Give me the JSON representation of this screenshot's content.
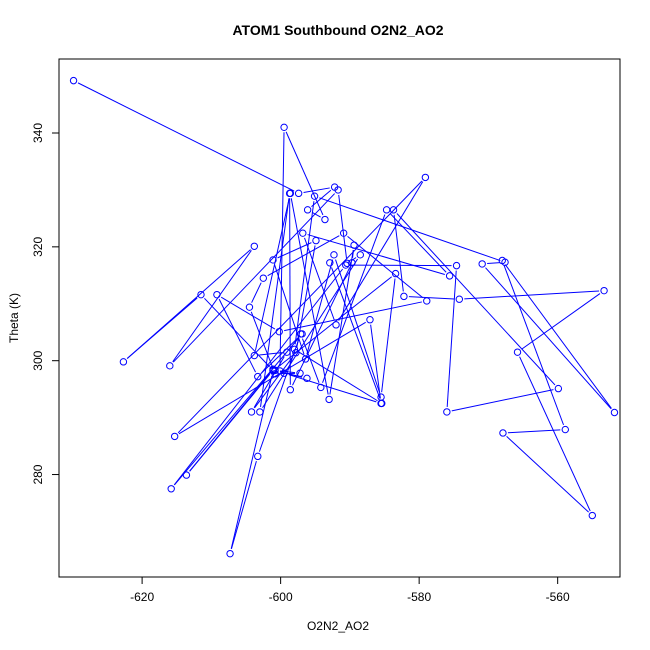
{
  "chart_data": {
    "type": "line",
    "title": "ATOM1 Southbound O2N2_AO2",
    "xlabel": "O2N2_AO2",
    "ylabel": "Theta (K)",
    "xlim": [
      -632,
      -551
    ],
    "ylim": [
      262,
      353
    ],
    "xticks": [
      -620,
      -600,
      -580,
      -560
    ],
    "yticks": [
      280,
      300,
      320,
      340
    ],
    "grid": false,
    "legend": "none",
    "series_color": "#0000ff",
    "markers": "open-circle",
    "x": [
      -629.9,
      -597.4,
      -592.2,
      -596.1,
      -593.6,
      -599.5,
      -600.1,
      -601.1,
      -613.6,
      -601.1,
      -611.5,
      -622.7,
      -603.8,
      -616.0,
      -591.7,
      -590.4,
      -588.5,
      -603.0,
      -598.7,
      -598.6,
      -589.7,
      -589.4,
      -593.0,
      -598.6,
      -603.8,
      -599.1,
      -604.2,
      -597.8,
      -594.9,
      -601.1,
      -596.4,
      -592.3,
      -585.5,
      -583.4,
      -601.1,
      -607.3,
      -603.3,
      -597.1,
      -594.2,
      -584.7,
      -575.6,
      -596.8,
      -592.0,
      -579.1,
      -615.3,
      -587.1,
      -585.5,
      -599.5,
      -596.2,
      -600.8,
      -597.2,
      -600.8,
      -604.5,
      -602.5,
      -590.9,
      -578.9,
      -600.2,
      -609.2,
      -603.3,
      -596.9,
      -615.8,
      -590.6,
      -574.6,
      -576.0,
      -559.9,
      -583.7,
      -582.2,
      -574.2,
      -553.3,
      -565.8,
      -555.0,
      -567.9,
      -558.9,
      -568.0,
      -551.8,
      -570.9,
      -567.6,
      -595.1,
      -598.0,
      -585.4,
      -592.9
    ],
    "y": [
      349.2,
      329.4,
      330.5,
      326.5,
      324.8,
      341.0,
      298.2,
      298.5,
      279.9,
      298.3,
      311.6,
      299.8,
      320.1,
      299.1,
      330.0,
      317.1,
      318.6,
      291.0,
      329.4,
      294.9,
      317.2,
      320.3,
      293.2,
      329.4,
      300.9,
      301.5,
      291.0,
      301.4,
      321.1,
      317.7,
      300.3,
      318.6,
      293.6,
      315.3,
      298.2,
      266.1,
      283.2,
      304.7,
      295.3,
      326.5,
      314.9,
      322.4,
      306.3,
      332.2,
      286.7,
      307.2,
      292.5,
      297.8,
      296.9,
      298.3,
      297.8,
      297.7,
      309.4,
      314.5,
      322.4,
      310.5,
      305.1,
      311.6,
      297.2,
      304.7,
      277.5,
      316.8,
      316.7,
      291.0,
      295.1,
      326.5,
      311.3,
      310.8,
      312.3,
      301.5,
      272.8,
      287.3,
      287.9,
      317.6,
      290.9,
      317.0,
      317.3,
      328.9,
      302.0,
      292.5,
      317.2
    ]
  }
}
